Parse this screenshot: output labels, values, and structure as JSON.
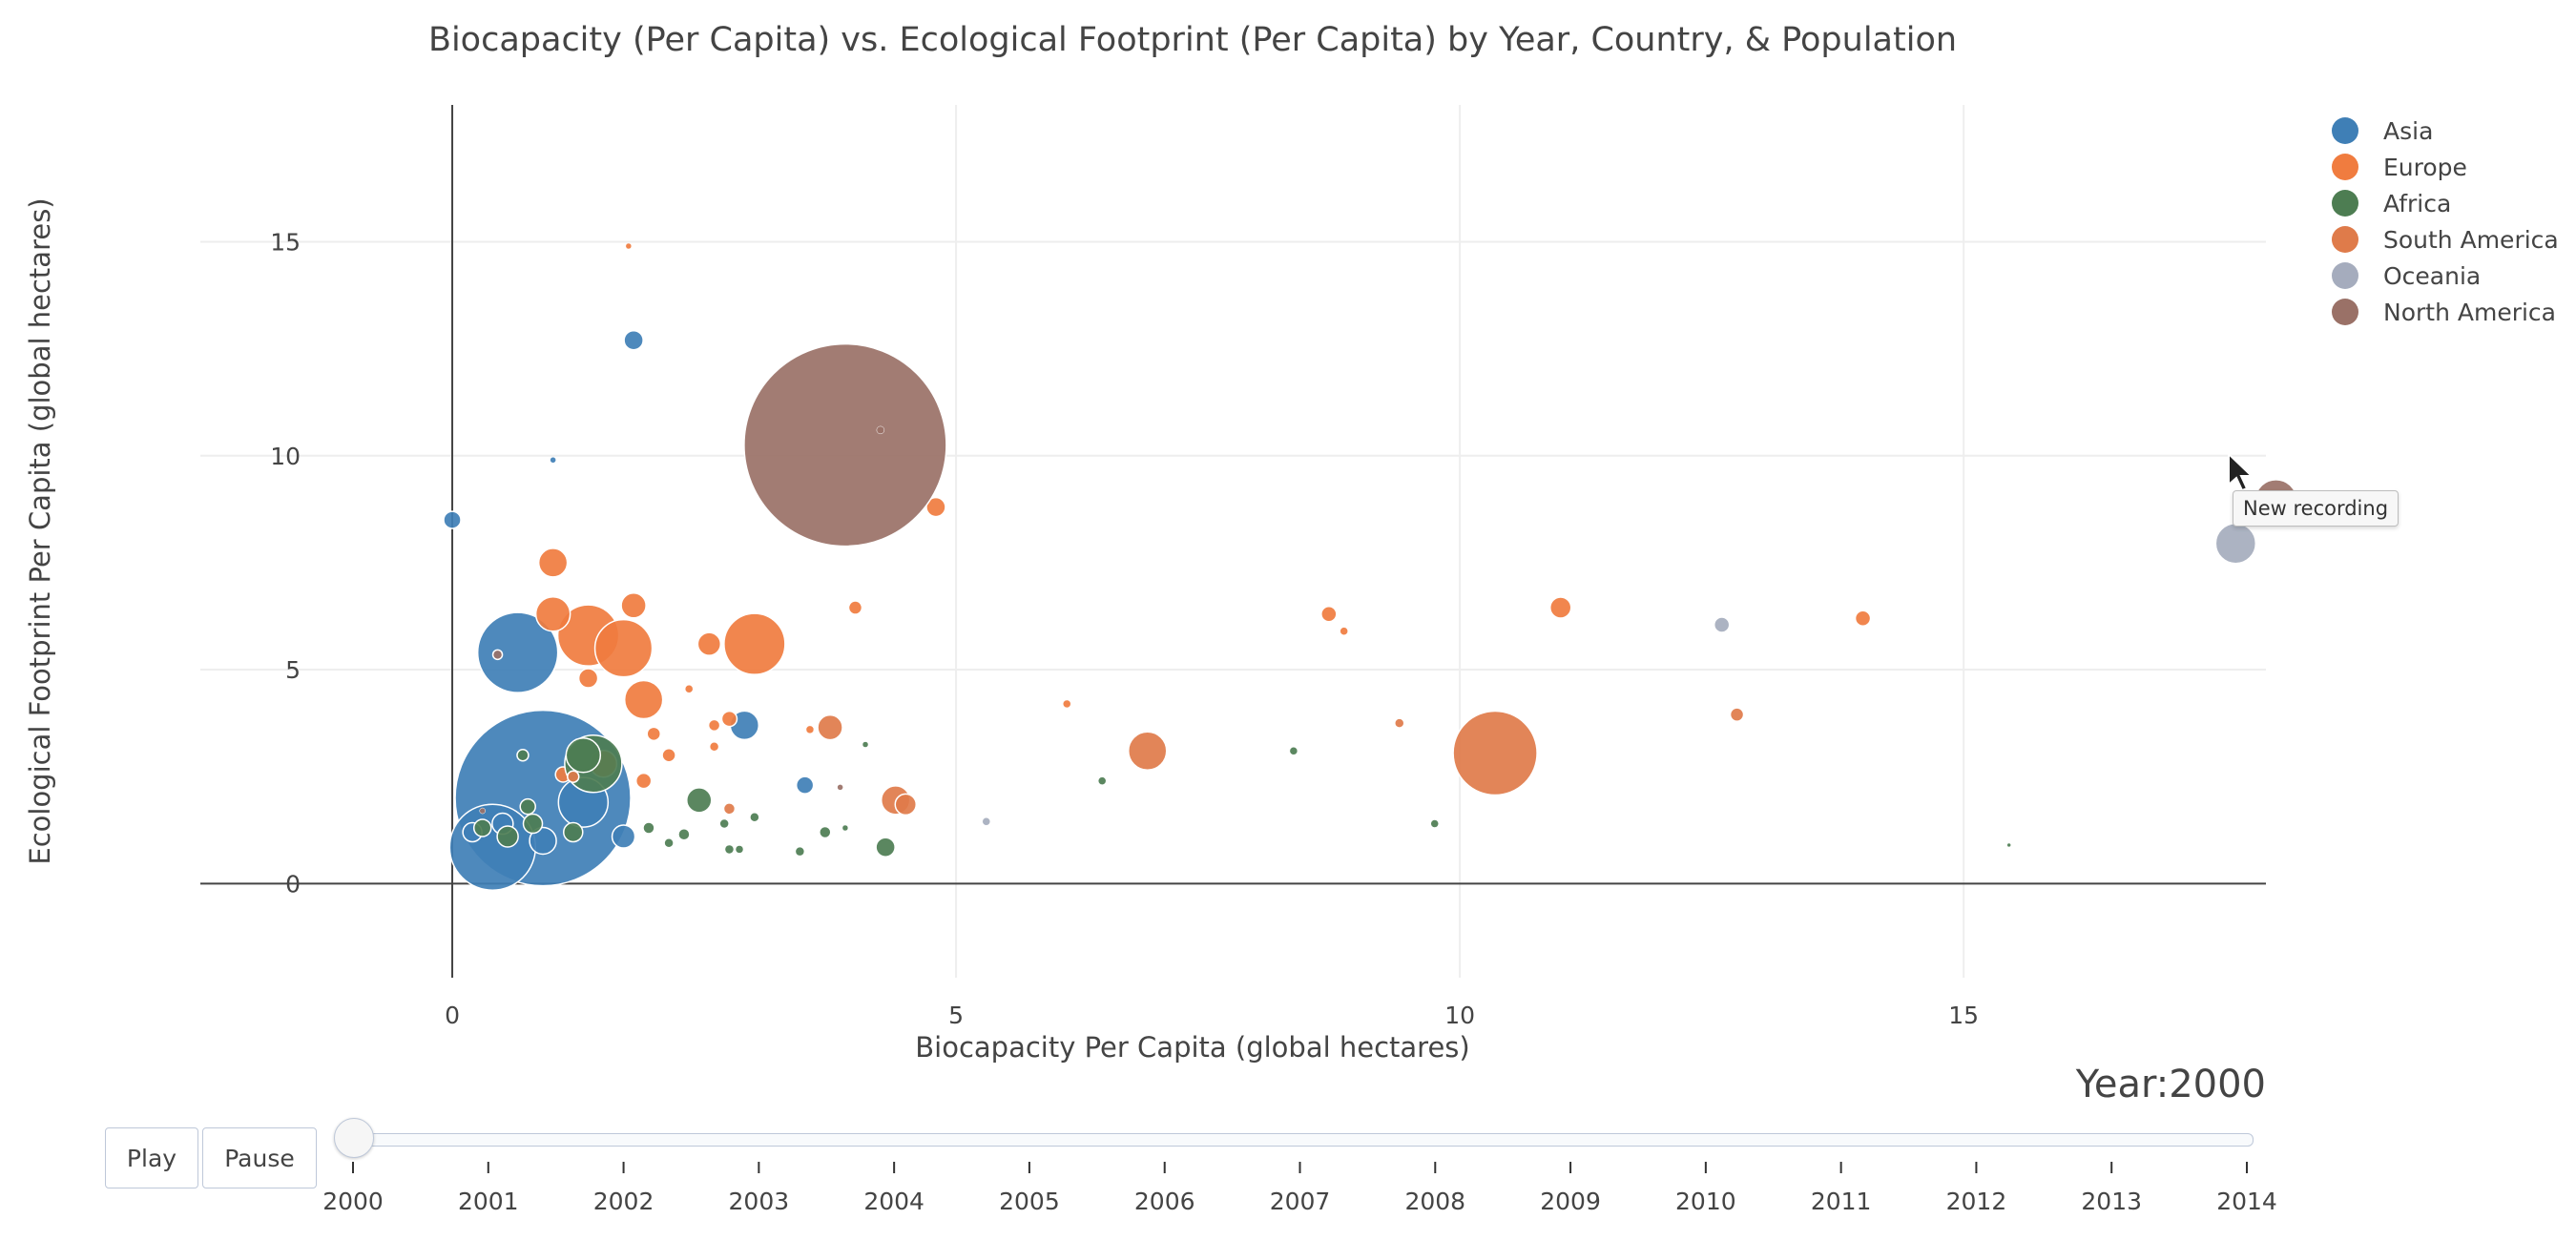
{
  "chart_data": {
    "type": "scatter",
    "title": "Biocapacity (Per Capita) vs. Ecological Footprint (Per Capita) by Year, Country, & Population",
    "xlabel": "Biocapacity Per Capita (global hectares)",
    "ylabel": "Ecological Footprint Per Capita (global hectares)",
    "xlim": [
      -2.5,
      18
    ],
    "ylim": [
      -2.2,
      18.2
    ],
    "x_ticks": [
      0,
      5,
      10,
      15
    ],
    "y_ticks": [
      0,
      5,
      10,
      15
    ],
    "grid": true,
    "legend_position": "top-right",
    "size_encodes": "population",
    "series": [
      {
        "name": "Asia",
        "color": "#3f7fb6",
        "points": [
          {
            "x": 0.9,
            "y": 2.0,
            "r": 92
          },
          {
            "x": 0.4,
            "y": 0.85,
            "r": 45
          },
          {
            "x": 0.65,
            "y": 5.4,
            "r": 42
          },
          {
            "x": 1.3,
            "y": 1.9,
            "r": 26
          },
          {
            "x": 1.8,
            "y": 12.7,
            "r": 10
          },
          {
            "x": 0.0,
            "y": 8.5,
            "r": 9
          },
          {
            "x": 2.9,
            "y": 3.7,
            "r": 15
          },
          {
            "x": 3.5,
            "y": 2.3,
            "r": 9
          },
          {
            "x": 1.7,
            "y": 1.1,
            "r": 12
          },
          {
            "x": 1.0,
            "y": 9.9,
            "r": 3
          },
          {
            "x": 0.5,
            "y": 1.4,
            "r": 11
          },
          {
            "x": 0.2,
            "y": 1.2,
            "r": 10
          },
          {
            "x": 0.9,
            "y": 1.0,
            "r": 14
          }
        ]
      },
      {
        "name": "Europe",
        "color": "#f07c3f",
        "points": [
          {
            "x": 1.35,
            "y": 5.8,
            "r": 32
          },
          {
            "x": 1.7,
            "y": 5.5,
            "r": 30
          },
          {
            "x": 3.0,
            "y": 5.6,
            "r": 32
          },
          {
            "x": 1.0,
            "y": 6.3,
            "r": 18
          },
          {
            "x": 1.9,
            "y": 4.3,
            "r": 20
          },
          {
            "x": 1.0,
            "y": 7.5,
            "r": 15
          },
          {
            "x": 1.8,
            "y": 6.5,
            "r": 13
          },
          {
            "x": 4.8,
            "y": 8.8,
            "r": 10
          },
          {
            "x": 2.55,
            "y": 5.6,
            "r": 12
          },
          {
            "x": 1.35,
            "y": 4.8,
            "r": 10
          },
          {
            "x": 4.0,
            "y": 6.45,
            "r": 7
          },
          {
            "x": 8.7,
            "y": 6.3,
            "r": 8
          },
          {
            "x": 11.0,
            "y": 6.45,
            "r": 11
          },
          {
            "x": 14.0,
            "y": 6.2,
            "r": 8
          },
          {
            "x": 8.85,
            "y": 5.9,
            "r": 4
          },
          {
            "x": 1.75,
            "y": 14.9,
            "r": 3
          },
          {
            "x": 6.1,
            "y": 4.2,
            "r": 4
          },
          {
            "x": 2.6,
            "y": 3.7,
            "r": 6
          },
          {
            "x": 2.75,
            "y": 3.85,
            "r": 8
          },
          {
            "x": 3.55,
            "y": 3.6,
            "r": 4
          },
          {
            "x": 2.0,
            "y": 3.5,
            "r": 7
          },
          {
            "x": 2.15,
            "y": 3.0,
            "r": 7
          },
          {
            "x": 2.6,
            "y": 3.2,
            "r": 5
          },
          {
            "x": 2.35,
            "y": 4.55,
            "r": 4
          },
          {
            "x": 1.9,
            "y": 2.4,
            "r": 8
          },
          {
            "x": 1.5,
            "y": 2.8,
            "r": 14
          },
          {
            "x": 1.1,
            "y": 2.55,
            "r": 8
          }
        ]
      },
      {
        "name": "Africa",
        "color": "#4d7d52",
        "points": [
          {
            "x": 1.4,
            "y": 2.8,
            "r": 30
          },
          {
            "x": 1.3,
            "y": 3.0,
            "r": 18
          },
          {
            "x": 2.45,
            "y": 1.95,
            "r": 13
          },
          {
            "x": 4.3,
            "y": 0.85,
            "r": 10
          },
          {
            "x": 1.2,
            "y": 1.2,
            "r": 10
          },
          {
            "x": 0.55,
            "y": 1.1,
            "r": 11
          },
          {
            "x": 0.8,
            "y": 1.4,
            "r": 10
          },
          {
            "x": 0.3,
            "y": 1.3,
            "r": 9
          },
          {
            "x": 0.75,
            "y": 1.8,
            "r": 8
          },
          {
            "x": 0.7,
            "y": 3.0,
            "r": 6
          },
          {
            "x": 1.95,
            "y": 1.3,
            "r": 6
          },
          {
            "x": 2.3,
            "y": 1.15,
            "r": 6
          },
          {
            "x": 2.15,
            "y": 0.95,
            "r": 5
          },
          {
            "x": 2.7,
            "y": 1.4,
            "r": 5
          },
          {
            "x": 3.0,
            "y": 1.55,
            "r": 5
          },
          {
            "x": 3.7,
            "y": 1.2,
            "r": 6
          },
          {
            "x": 2.75,
            "y": 0.8,
            "r": 5
          },
          {
            "x": 2.85,
            "y": 0.8,
            "r": 4
          },
          {
            "x": 3.45,
            "y": 0.75,
            "r": 5
          },
          {
            "x": 3.9,
            "y": 1.3,
            "r": 3
          },
          {
            "x": 6.45,
            "y": 2.4,
            "r": 4
          },
          {
            "x": 8.35,
            "y": 3.1,
            "r": 4
          },
          {
            "x": 9.75,
            "y": 1.4,
            "r": 4
          },
          {
            "x": 4.1,
            "y": 3.25,
            "r": 3
          },
          {
            "x": 15.45,
            "y": 0.9,
            "r": 2
          }
        ]
      },
      {
        "name": "South America",
        "color": "#df7b4a",
        "points": [
          {
            "x": 10.35,
            "y": 3.05,
            "r": 44
          },
          {
            "x": 6.9,
            "y": 3.1,
            "r": 20
          },
          {
            "x": 3.75,
            "y": 3.65,
            "r": 13
          },
          {
            "x": 4.4,
            "y": 1.95,
            "r": 15
          },
          {
            "x": 4.5,
            "y": 1.85,
            "r": 11
          },
          {
            "x": 12.75,
            "y": 3.95,
            "r": 7
          },
          {
            "x": 9.4,
            "y": 3.75,
            "r": 5
          },
          {
            "x": 2.75,
            "y": 1.75,
            "r": 6
          },
          {
            "x": 1.2,
            "y": 2.5,
            "r": 6
          }
        ]
      },
      {
        "name": "Oceania",
        "color": "#a5acbd",
        "points": [
          {
            "x": 17.7,
            "y": 7.95,
            "r": 21
          },
          {
            "x": 12.6,
            "y": 6.05,
            "r": 8
          },
          {
            "x": 5.3,
            "y": 1.45,
            "r": 4
          }
        ]
      },
      {
        "name": "North America",
        "color": "#9a7167",
        "points": [
          {
            "x": 3.9,
            "y": 10.25,
            "r": 106
          },
          {
            "x": 18.1,
            "y": 8.95,
            "r": 22
          },
          {
            "x": 4.25,
            "y": 10.6,
            "r": 4
          },
          {
            "x": 3.85,
            "y": 2.25,
            "r": 3
          },
          {
            "x": 0.45,
            "y": 5.35,
            "r": 5
          },
          {
            "x": 0.3,
            "y": 1.7,
            "r": 3
          }
        ]
      }
    ]
  },
  "controls": {
    "play_label": "Play",
    "pause_label": "Pause",
    "year_prefix": "Year:",
    "current_year": "2000",
    "years": [
      "2000",
      "2001",
      "2002",
      "2003",
      "2004",
      "2005",
      "2006",
      "2007",
      "2008",
      "2009",
      "2010",
      "2011",
      "2012",
      "2013",
      "2014"
    ]
  },
  "tooltip": {
    "text": "New recording"
  }
}
